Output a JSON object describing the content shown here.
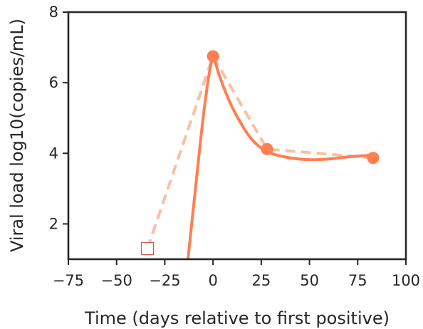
{
  "chart_data": {
    "type": "line",
    "xlabel": "Time (days relative to first positive)",
    "ylabel": "Viral load log10(copies/mL)",
    "xlim": [
      -75,
      100
    ],
    "ylim": [
      1,
      8
    ],
    "x_ticks": [
      -75,
      -50,
      -25,
      0,
      25,
      50,
      75,
      100
    ],
    "x_tick_labels": [
      "−75",
      "−50",
      "−25",
      "0",
      "25",
      "50",
      "75",
      "100"
    ],
    "y_ticks": [
      2,
      4,
      6,
      8
    ],
    "y_tick_labels": [
      "2",
      "4",
      "6",
      "8"
    ],
    "grid": false,
    "colors": {
      "model_line": "#ff7f50",
      "observed_points": "#ff7f50",
      "dashed_line": "#fbbfa4",
      "censored_marker": "#d9534f",
      "axes": "#262626"
    },
    "series": [
      {
        "style": "solid-curve",
        "x": [
          -13,
          -9.5,
          -6,
          -3,
          -1,
          0,
          3,
          6,
          10,
          15,
          20,
          25,
          30,
          40,
          50,
          60,
          70,
          80,
          83
        ],
        "y": [
          1.0,
          2.8,
          4.6,
          5.9,
          6.55,
          6.75,
          6.25,
          5.8,
          5.3,
          4.8,
          4.4,
          4.15,
          4.0,
          3.87,
          3.82,
          3.84,
          3.9,
          3.94,
          3.96
        ]
      },
      {
        "style": "observed-points",
        "x": [
          0,
          28,
          83
        ],
        "y": [
          6.75,
          4.12,
          3.87
        ]
      },
      {
        "style": "dashed-line",
        "x": [
          -34,
          0,
          28,
          83
        ],
        "y": [
          1.3,
          6.75,
          4.12,
          3.87
        ]
      },
      {
        "style": "censored-square",
        "x": [
          -34
        ],
        "y": [
          1.3
        ]
      }
    ]
  }
}
